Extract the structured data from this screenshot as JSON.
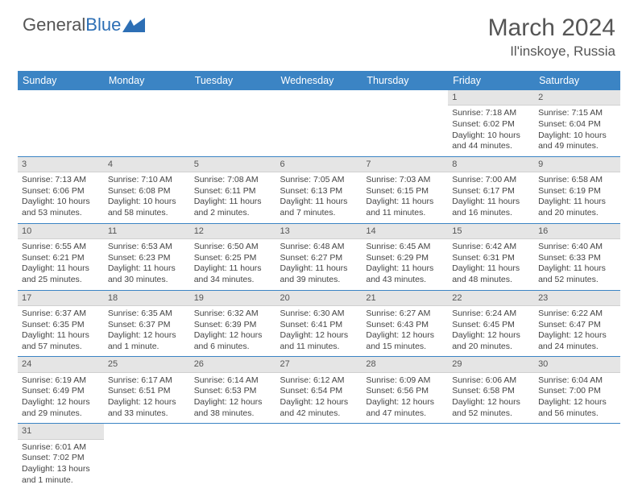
{
  "logo": {
    "part1": "General",
    "part2": "Blue"
  },
  "title": "March 2024",
  "location": "Il'inskoye, Russia",
  "colors": {
    "header_bg": "#3b84c4",
    "header_fg": "#ffffff",
    "daynum_bg": "#e5e5e5",
    "border": "#3b84c4",
    "logo_accent": "#2d6fb5"
  },
  "typography": {
    "title_fontsize": 30,
    "location_fontsize": 17,
    "header_fontsize": 12.5,
    "cell_fontsize": 10.5
  },
  "weekdays": [
    "Sunday",
    "Monday",
    "Tuesday",
    "Wednesday",
    "Thursday",
    "Friday",
    "Saturday"
  ],
  "weeks": [
    [
      null,
      null,
      null,
      null,
      null,
      {
        "n": "1",
        "sunrise": "Sunrise: 7:18 AM",
        "sunset": "Sunset: 6:02 PM",
        "daylight": "Daylight: 10 hours and 44 minutes."
      },
      {
        "n": "2",
        "sunrise": "Sunrise: 7:15 AM",
        "sunset": "Sunset: 6:04 PM",
        "daylight": "Daylight: 10 hours and 49 minutes."
      }
    ],
    [
      {
        "n": "3",
        "sunrise": "Sunrise: 7:13 AM",
        "sunset": "Sunset: 6:06 PM",
        "daylight": "Daylight: 10 hours and 53 minutes."
      },
      {
        "n": "4",
        "sunrise": "Sunrise: 7:10 AM",
        "sunset": "Sunset: 6:08 PM",
        "daylight": "Daylight: 10 hours and 58 minutes."
      },
      {
        "n": "5",
        "sunrise": "Sunrise: 7:08 AM",
        "sunset": "Sunset: 6:11 PM",
        "daylight": "Daylight: 11 hours and 2 minutes."
      },
      {
        "n": "6",
        "sunrise": "Sunrise: 7:05 AM",
        "sunset": "Sunset: 6:13 PM",
        "daylight": "Daylight: 11 hours and 7 minutes."
      },
      {
        "n": "7",
        "sunrise": "Sunrise: 7:03 AM",
        "sunset": "Sunset: 6:15 PM",
        "daylight": "Daylight: 11 hours and 11 minutes."
      },
      {
        "n": "8",
        "sunrise": "Sunrise: 7:00 AM",
        "sunset": "Sunset: 6:17 PM",
        "daylight": "Daylight: 11 hours and 16 minutes."
      },
      {
        "n": "9",
        "sunrise": "Sunrise: 6:58 AM",
        "sunset": "Sunset: 6:19 PM",
        "daylight": "Daylight: 11 hours and 20 minutes."
      }
    ],
    [
      {
        "n": "10",
        "sunrise": "Sunrise: 6:55 AM",
        "sunset": "Sunset: 6:21 PM",
        "daylight": "Daylight: 11 hours and 25 minutes."
      },
      {
        "n": "11",
        "sunrise": "Sunrise: 6:53 AM",
        "sunset": "Sunset: 6:23 PM",
        "daylight": "Daylight: 11 hours and 30 minutes."
      },
      {
        "n": "12",
        "sunrise": "Sunrise: 6:50 AM",
        "sunset": "Sunset: 6:25 PM",
        "daylight": "Daylight: 11 hours and 34 minutes."
      },
      {
        "n": "13",
        "sunrise": "Sunrise: 6:48 AM",
        "sunset": "Sunset: 6:27 PM",
        "daylight": "Daylight: 11 hours and 39 minutes."
      },
      {
        "n": "14",
        "sunrise": "Sunrise: 6:45 AM",
        "sunset": "Sunset: 6:29 PM",
        "daylight": "Daylight: 11 hours and 43 minutes."
      },
      {
        "n": "15",
        "sunrise": "Sunrise: 6:42 AM",
        "sunset": "Sunset: 6:31 PM",
        "daylight": "Daylight: 11 hours and 48 minutes."
      },
      {
        "n": "16",
        "sunrise": "Sunrise: 6:40 AM",
        "sunset": "Sunset: 6:33 PM",
        "daylight": "Daylight: 11 hours and 52 minutes."
      }
    ],
    [
      {
        "n": "17",
        "sunrise": "Sunrise: 6:37 AM",
        "sunset": "Sunset: 6:35 PM",
        "daylight": "Daylight: 11 hours and 57 minutes."
      },
      {
        "n": "18",
        "sunrise": "Sunrise: 6:35 AM",
        "sunset": "Sunset: 6:37 PM",
        "daylight": "Daylight: 12 hours and 1 minute."
      },
      {
        "n": "19",
        "sunrise": "Sunrise: 6:32 AM",
        "sunset": "Sunset: 6:39 PM",
        "daylight": "Daylight: 12 hours and 6 minutes."
      },
      {
        "n": "20",
        "sunrise": "Sunrise: 6:30 AM",
        "sunset": "Sunset: 6:41 PM",
        "daylight": "Daylight: 12 hours and 11 minutes."
      },
      {
        "n": "21",
        "sunrise": "Sunrise: 6:27 AM",
        "sunset": "Sunset: 6:43 PM",
        "daylight": "Daylight: 12 hours and 15 minutes."
      },
      {
        "n": "22",
        "sunrise": "Sunrise: 6:24 AM",
        "sunset": "Sunset: 6:45 PM",
        "daylight": "Daylight: 12 hours and 20 minutes."
      },
      {
        "n": "23",
        "sunrise": "Sunrise: 6:22 AM",
        "sunset": "Sunset: 6:47 PM",
        "daylight": "Daylight: 12 hours and 24 minutes."
      }
    ],
    [
      {
        "n": "24",
        "sunrise": "Sunrise: 6:19 AM",
        "sunset": "Sunset: 6:49 PM",
        "daylight": "Daylight: 12 hours and 29 minutes."
      },
      {
        "n": "25",
        "sunrise": "Sunrise: 6:17 AM",
        "sunset": "Sunset: 6:51 PM",
        "daylight": "Daylight: 12 hours and 33 minutes."
      },
      {
        "n": "26",
        "sunrise": "Sunrise: 6:14 AM",
        "sunset": "Sunset: 6:53 PM",
        "daylight": "Daylight: 12 hours and 38 minutes."
      },
      {
        "n": "27",
        "sunrise": "Sunrise: 6:12 AM",
        "sunset": "Sunset: 6:54 PM",
        "daylight": "Daylight: 12 hours and 42 minutes."
      },
      {
        "n": "28",
        "sunrise": "Sunrise: 6:09 AM",
        "sunset": "Sunset: 6:56 PM",
        "daylight": "Daylight: 12 hours and 47 minutes."
      },
      {
        "n": "29",
        "sunrise": "Sunrise: 6:06 AM",
        "sunset": "Sunset: 6:58 PM",
        "daylight": "Daylight: 12 hours and 52 minutes."
      },
      {
        "n": "30",
        "sunrise": "Sunrise: 6:04 AM",
        "sunset": "Sunset: 7:00 PM",
        "daylight": "Daylight: 12 hours and 56 minutes."
      }
    ],
    [
      {
        "n": "31",
        "sunrise": "Sunrise: 6:01 AM",
        "sunset": "Sunset: 7:02 PM",
        "daylight": "Daylight: 13 hours and 1 minute."
      },
      null,
      null,
      null,
      null,
      null,
      null
    ]
  ]
}
